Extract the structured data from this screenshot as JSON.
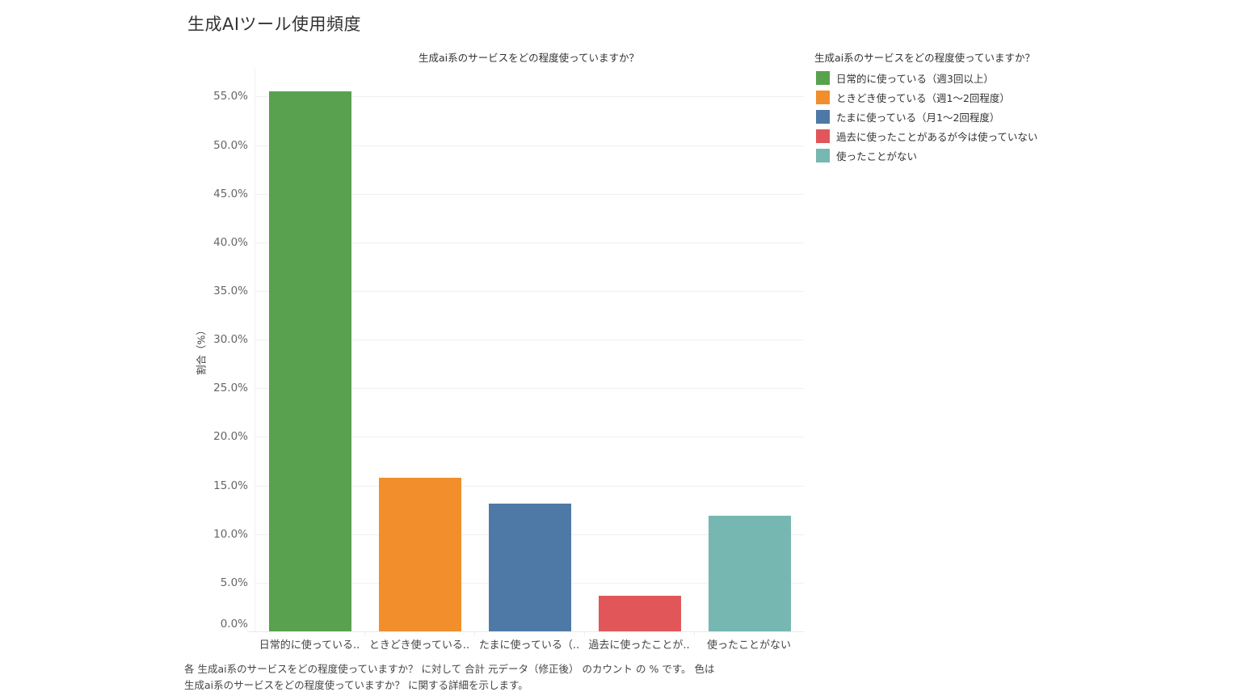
{
  "page": {
    "title": "生成AIツール使用頻度"
  },
  "chart_data": {
    "type": "bar",
    "title": "生成ai系のサービスをどの程度使っていますか？",
    "xlabel": "",
    "ylabel": "割合（%）",
    "ylim": [
      0,
      57.5
    ],
    "grid": true,
    "legend_position": "right",
    "yticks": [
      "0.0%",
      "5.0%",
      "10.0%",
      "15.0%",
      "20.0%",
      "25.0%",
      "30.0%",
      "35.0%",
      "40.0%",
      "45.0%",
      "50.0%",
      "55.0%"
    ],
    "categories": [
      "日常的に使っている（週3回以上）",
      "ときどき使っている（週1〜2回程度）",
      "たまに使っている（月1〜2回程度）",
      "過去に使ったことがあるが今は使っていない",
      "使ったことがない"
    ],
    "category_tick_labels": [
      "日常的に使っている..",
      "ときどき使っている..",
      "たまに使っている（..",
      "過去に使ったことが..",
      "使ったことがない"
    ],
    "values": [
      55.5,
      15.8,
      13.1,
      3.7,
      11.9
    ],
    "colors": [
      "#59A14F",
      "#F28E2B",
      "#4E79A7",
      "#E15759",
      "#76B7B2"
    ],
    "legend": {
      "title": "生成ai系のサービスをどの程度使っていますか？",
      "entries": [
        {
          "label": "日常的に使っている（週3回以上）",
          "color": "#59A14F"
        },
        {
          "label": "ときどき使っている（週1〜2回程度）",
          "color": "#F28E2B"
        },
        {
          "label": "たまに使っている（月1〜2回程度）",
          "color": "#4E79A7"
        },
        {
          "label": "過去に使ったことがあるが今は使っていない",
          "color": "#E15759"
        },
        {
          "label": "使ったことがない",
          "color": "#76B7B2"
        }
      ]
    }
  },
  "caption": {
    "line1": "各 生成ai系のサービスをどの程度使っていますか？ に対して 合計 元データ（修正後） のカウント の % です。 色は",
    "line2": "生成ai系のサービスをどの程度使っていますか？ に関する詳細を示します。"
  }
}
